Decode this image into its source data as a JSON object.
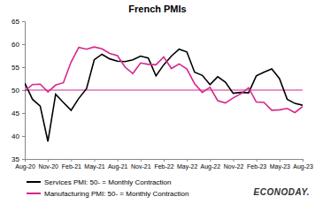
{
  "chart_data": {
    "type": "line",
    "title": "French PMIs",
    "annotations": [
      "ECONODAY."
    ],
    "categories": [
      "Aug-20",
      null,
      null,
      "Nov-20",
      null,
      null,
      "Feb-21",
      null,
      null,
      "May-21",
      null,
      null,
      "Aug-21",
      null,
      null,
      "Nov-21",
      null,
      null,
      "Feb-22",
      null,
      null,
      "May-22",
      null,
      null,
      "Aug-22",
      null,
      null,
      "Nov-22",
      null,
      null,
      "Feb-23",
      null,
      null,
      "May-23",
      null,
      null,
      "Aug-23"
    ],
    "series": [
      {
        "name": "Services PMI: 50- = Monthly Contraction",
        "color": "#000000",
        "values": [
          51.5,
          48.0,
          46.5,
          38.8,
          49.1,
          47.3,
          45.6,
          48.2,
          50.3,
          56.6,
          57.8,
          56.8,
          56.3,
          56.2,
          56.6,
          57.4,
          57.0,
          53.1,
          55.5,
          57.4,
          58.9,
          58.3,
          53.9,
          53.2,
          51.2,
          52.9,
          51.7,
          49.3,
          49.5,
          49.4,
          53.1,
          53.9,
          54.6,
          52.5,
          48.0,
          47.1,
          46.7
        ]
      },
      {
        "name": "Manufacturing PMI: 50- = Monthly Contraction",
        "color": "#d6268f",
        "values": [
          49.8,
          51.2,
          51.3,
          49.6,
          51.1,
          51.6,
          56.1,
          59.3,
          58.9,
          59.4,
          59.0,
          58.0,
          57.5,
          55.0,
          53.6,
          55.9,
          55.6,
          55.5,
          57.2,
          54.7,
          55.7,
          54.6,
          51.4,
          49.5,
          50.6,
          47.7,
          47.2,
          48.3,
          49.2,
          50.5,
          47.4,
          47.3,
          45.6,
          45.7,
          46.0,
          45.1,
          46.4
        ]
      }
    ],
    "reference_line": 50,
    "reference_color": "#d6268f",
    "ylim": [
      35,
      65
    ],
    "yticks": [
      35,
      40,
      45,
      50,
      55,
      60,
      65
    ],
    "grid": false,
    "legend": "bottom"
  }
}
